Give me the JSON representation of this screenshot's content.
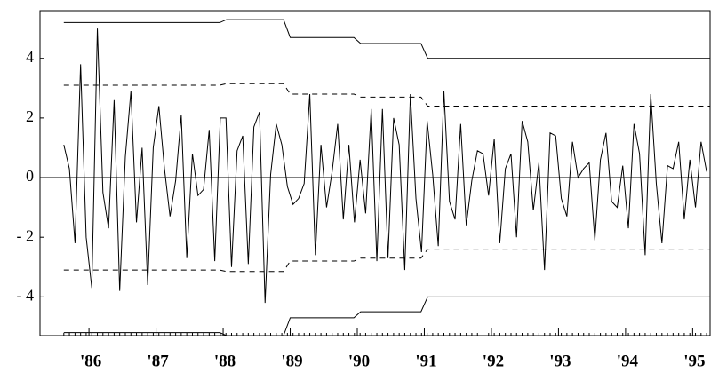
{
  "chart_data": {
    "type": "line",
    "x": [
      1985.625,
      1985.708,
      1985.792,
      1985.875,
      1985.958,
      1986.042,
      1986.125,
      1986.208,
      1986.292,
      1986.375,
      1986.458,
      1986.542,
      1986.625,
      1986.708,
      1986.792,
      1986.875,
      1986.958,
      1987.042,
      1987.125,
      1987.208,
      1987.292,
      1987.375,
      1987.458,
      1987.542,
      1987.625,
      1987.708,
      1987.792,
      1987.875,
      1987.958,
      1988.042,
      1988.125,
      1988.208,
      1988.292,
      1988.375,
      1988.458,
      1988.542,
      1988.625,
      1988.708,
      1988.792,
      1988.875,
      1988.958,
      1989.042,
      1989.125,
      1989.208,
      1989.292,
      1989.375,
      1989.458,
      1989.542,
      1989.625,
      1989.708,
      1989.792,
      1989.875,
      1989.958,
      1990.042,
      1990.125,
      1990.208,
      1990.292,
      1990.375,
      1990.458,
      1990.542,
      1990.625,
      1990.708,
      1990.792,
      1990.875,
      1990.958,
      1991.042,
      1991.125,
      1991.208,
      1991.292,
      1991.375,
      1991.458,
      1991.542,
      1991.625,
      1991.708,
      1991.792,
      1991.875,
      1991.958,
      1992.042,
      1992.125,
      1992.208,
      1992.292,
      1992.375,
      1992.458,
      1992.542,
      1992.625,
      1992.708,
      1992.792,
      1992.875,
      1992.958,
      1993.042,
      1993.125,
      1993.208,
      1993.292,
      1993.375,
      1993.458,
      1993.542,
      1993.625,
      1993.708,
      1993.792,
      1993.875,
      1993.958,
      1994.042,
      1994.125,
      1994.208,
      1994.292,
      1994.375,
      1994.458,
      1994.542,
      1994.625,
      1994.708,
      1994.792,
      1994.875,
      1994.958,
      1995.042,
      1995.125,
      1995.208
    ],
    "series": [
      {
        "color": "#000000",
        "values": [
          1.1,
          0.3,
          -2.2,
          3.8,
          -2.0,
          -3.7,
          5.0,
          -0.5,
          -1.7,
          2.6,
          -3.8,
          0.7,
          2.9,
          -1.5,
          1.0,
          -3.6,
          1.0,
          2.4,
          0.3,
          -1.3,
          -0.1,
          2.1,
          -2.7,
          0.8,
          -0.6,
          -0.4,
          1.6,
          -2.8,
          2.0,
          2.0,
          -3.0,
          0.9,
          1.4,
          -2.9,
          1.7,
          2.2,
          -4.2,
          0.1,
          1.8,
          1.1,
          -0.3,
          -0.9,
          -0.7,
          -0.2,
          2.8,
          -2.6,
          1.1,
          -1.0,
          0.2,
          1.8,
          -1.4,
          1.1,
          -1.5,
          0.6,
          -1.2,
          2.3,
          -2.8,
          2.3,
          -2.7,
          2.0,
          1.1,
          -3.1,
          2.8,
          -0.7,
          -2.5,
          1.9,
          0.1,
          -2.3,
          2.9,
          -0.8,
          -1.4,
          1.8,
          -1.6,
          -0.1,
          0.9,
          0.8,
          -0.6,
          1.3,
          -2.2,
          0.3,
          0.8,
          -2.0,
          1.9,
          1.2,
          -1.1,
          0.5,
          -3.1,
          1.5,
          1.4,
          -0.7,
          -1.3,
          1.2,
          0.0,
          0.3,
          0.5,
          -2.1,
          0.6,
          1.5,
          -0.8,
          -1.0,
          0.4,
          -1.7,
          1.8,
          0.8,
          -2.6,
          2.8,
          -0.2,
          -2.2,
          0.4,
          0.3,
          1.2,
          -1.4,
          0.6,
          -1.0,
          1.2,
          0.2
        ]
      },
      {
        "color": "#000000",
        "dash": false,
        "x": [
          1985.625,
          1987.95,
          1988.05,
          1988.9,
          1989.0,
          1989.95,
          1990.05,
          1990.95,
          1991.05,
          1995.26
        ],
        "values": [
          5.2,
          5.2,
          5.3,
          5.3,
          4.7,
          4.7,
          4.5,
          4.5,
          4.0,
          4.0
        ]
      },
      {
        "color": "#000000",
        "dash": true,
        "x": [
          1985.625,
          1987.95,
          1988.05,
          1988.9,
          1989.0,
          1989.95,
          1990.05,
          1990.95,
          1991.05,
          1995.26
        ],
        "values": [
          3.1,
          3.1,
          3.15,
          3.15,
          2.8,
          2.8,
          2.7,
          2.7,
          2.4,
          2.4
        ]
      },
      {
        "color": "#000000",
        "dash": true,
        "x": [
          1985.625,
          1987.95,
          1988.05,
          1988.9,
          1989.0,
          1989.95,
          1990.05,
          1990.95,
          1991.05,
          1995.26
        ],
        "values": [
          -3.1,
          -3.1,
          -3.15,
          -3.15,
          -2.8,
          -2.8,
          -2.7,
          -2.7,
          -2.4,
          -2.4
        ]
      },
      {
        "color": "#000000",
        "dash": false,
        "x": [
          1985.625,
          1987.95,
          1988.05,
          1988.9,
          1989.0,
          1989.95,
          1990.05,
          1990.95,
          1991.05,
          1995.26
        ],
        "values": [
          -5.2,
          -5.2,
          -5.3,
          -5.3,
          -4.7,
          -4.7,
          -4.5,
          -4.5,
          -4.0,
          -4.0
        ]
      }
    ],
    "xlim": [
      1985.27,
      1995.26
    ],
    "xticks": [
      {
        "value": 1986,
        "label": "'86"
      },
      {
        "value": 1987,
        "label": "'87"
      },
      {
        "value": 1988,
        "label": "'88"
      },
      {
        "value": 1989,
        "label": "'89"
      },
      {
        "value": 1990,
        "label": "'90"
      },
      {
        "value": 1991,
        "label": "'91"
      },
      {
        "value": 1992,
        "label": "'92"
      },
      {
        "value": 1993,
        "label": "'93"
      },
      {
        "value": 1994,
        "label": "'94"
      },
      {
        "value": 1995,
        "label": "'95"
      }
    ],
    "ylim": [
      -5.3,
      5.6
    ],
    "yticks": [
      {
        "value": -4,
        "label": "- 4"
      },
      {
        "value": -2,
        "label": "- 2"
      },
      0,
      2,
      4
    ],
    "zero_line": true
  }
}
